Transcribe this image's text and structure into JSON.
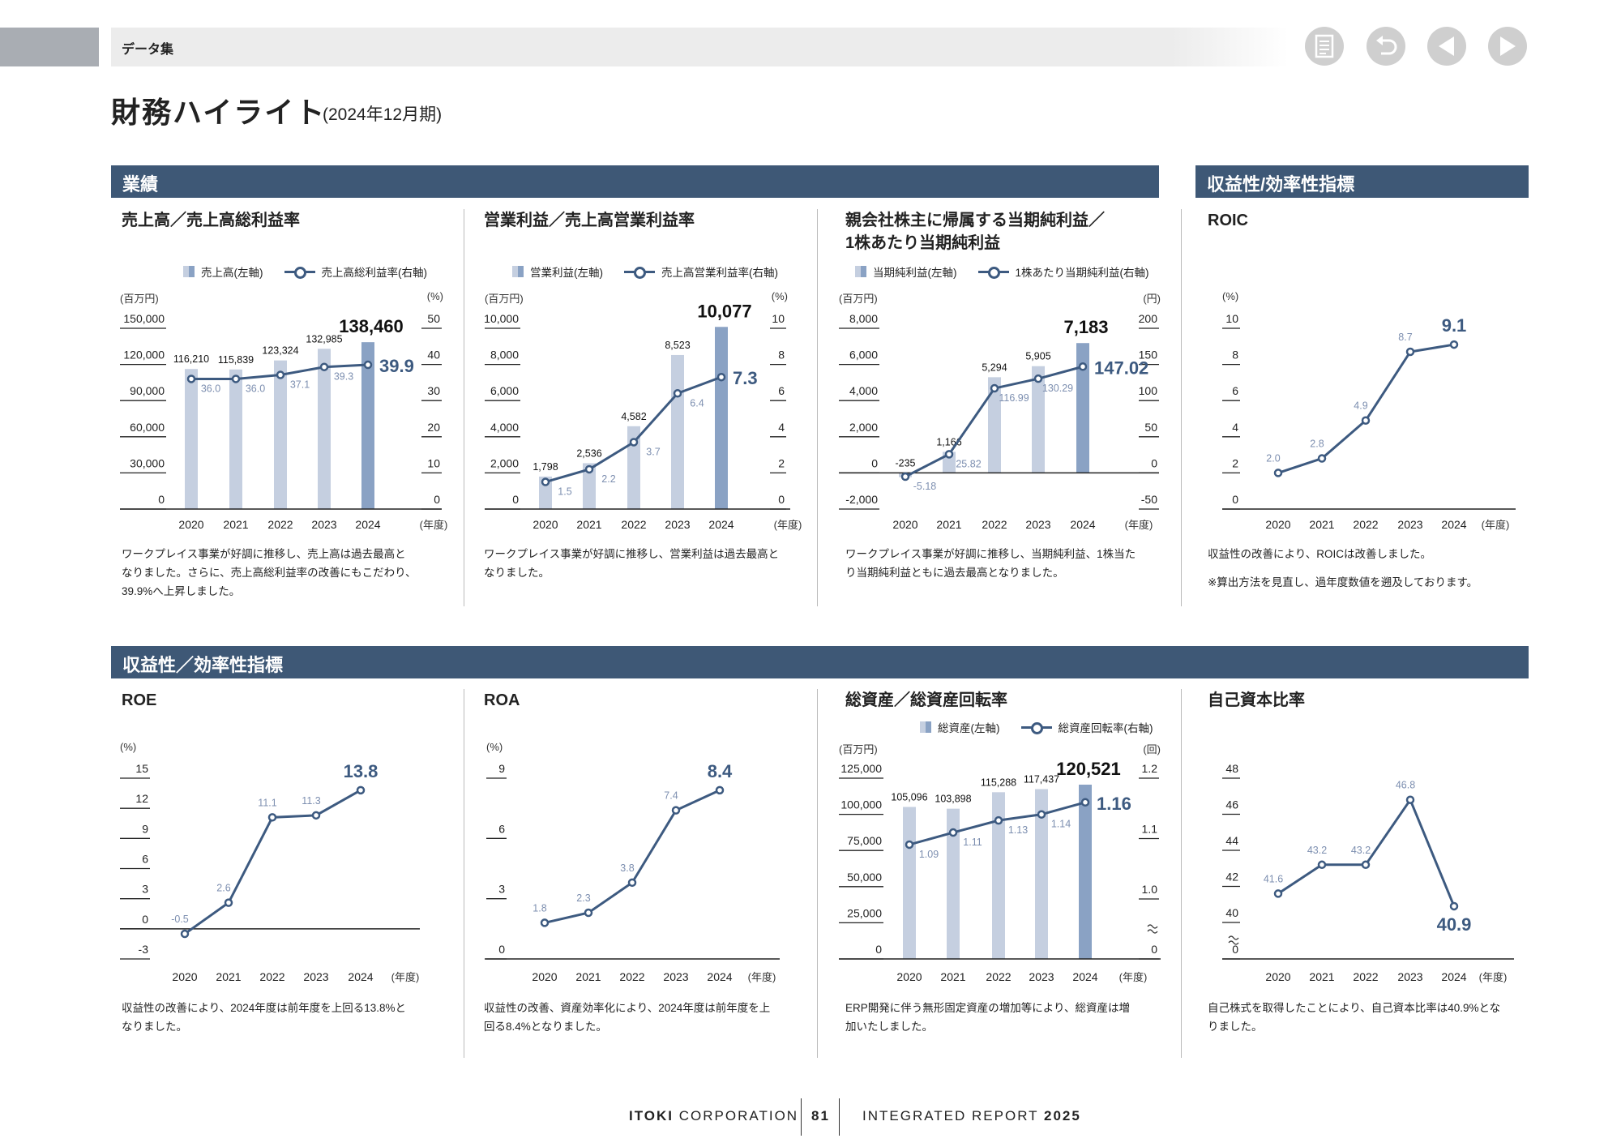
{
  "header": {
    "section": "データ集",
    "nav": [
      "document-icon",
      "undo-icon",
      "prev-page-icon",
      "next-page-icon"
    ]
  },
  "title": {
    "main": "財務ハイライト",
    "period": "(2024年12月期)"
  },
  "sections": {
    "top_left": "業績",
    "top_right": "収益性/効率性指標",
    "bottom": "収益性／効率性指標"
  },
  "colors": {
    "section": "#3e5876",
    "bar": "#c5cfe0",
    "bar_latest": "#8aa2c4",
    "line": "#3d5a80",
    "label": "#7d8fb0"
  },
  "chart_data": [
    {
      "id": "c1",
      "type": "bar+line",
      "title": "売上高／売上高総利益率",
      "legend_bar": "売上高(左軸)",
      "legend_line": "売上高総利益率(右軸)",
      "unit_left": "(百万円)",
      "unit_right": "(%)",
      "x_unit": "(年度)",
      "categories": [
        "2020",
        "2021",
        "2022",
        "2023",
        "2024"
      ],
      "left_ticks": [
        "0",
        "30,000",
        "60,000",
        "90,000",
        "120,000",
        "150,000"
      ],
      "right_ticks": [
        "0",
        "10",
        "20",
        "30",
        "40",
        "50"
      ],
      "bars": [
        116210,
        115839,
        123324,
        132985,
        138460
      ],
      "line": [
        "36.0",
        "36.0",
        "37.1",
        "39.3",
        "39.9"
      ],
      "desc": [
        "ワークプレイス事業が好調に推移し、売上高は過去最高と",
        "なりました。さらに、売上高総利益率の改善にもこだわり、",
        "39.9%へ上昇しました。"
      ]
    },
    {
      "id": "c2",
      "type": "bar+line",
      "title": "営業利益／売上高営業利益率",
      "legend_bar": "営業利益(左軸)",
      "legend_line": "売上高営業利益率(右軸)",
      "unit_left": "(百万円)",
      "unit_right": "(%)",
      "x_unit": "(年度)",
      "categories": [
        "2020",
        "2021",
        "2022",
        "2023",
        "2024"
      ],
      "left_ticks": [
        "0",
        "2,000",
        "4,000",
        "6,000",
        "8,000",
        "10,000"
      ],
      "right_ticks": [
        "0",
        "2",
        "4",
        "6",
        "8",
        "10"
      ],
      "bars": [
        1798,
        2536,
        4582,
        8523,
        10077
      ],
      "line": [
        "1.5",
        "2.2",
        "3.7",
        "6.4",
        "7.3"
      ],
      "desc": [
        "ワークプレイス事業が好調に推移し、営業利益は過去最高と",
        "なりました。"
      ]
    },
    {
      "id": "c3",
      "type": "bar+line",
      "title": "親会社株主に帰属する当期純利益／",
      "title2": "1株あたり当期純利益",
      "legend_bar": "当期純利益(左軸)",
      "legend_line": "1株あたり当期純利益(右軸)",
      "unit_left": "(百万円)",
      "unit_right": "(円)",
      "x_unit": "(年度)",
      "categories": [
        "2020",
        "2021",
        "2022",
        "2023",
        "2024"
      ],
      "left_ticks": [
        "-2,000",
        "0",
        "2,000",
        "4,000",
        "6,000",
        "8,000"
      ],
      "right_ticks": [
        "-50",
        "0",
        "50",
        "100",
        "150",
        "200"
      ],
      "bars": [
        -235,
        1166,
        5294,
        5905,
        7183
      ],
      "line": [
        "-5.18",
        "25.82",
        "116.99",
        "130.29",
        "147.02"
      ],
      "desc": [
        "ワークプレイス事業が好調に推移し、当期純利益、1株当た",
        "り当期純利益ともに過去最高となりました。"
      ]
    },
    {
      "id": "c4",
      "type": "line",
      "title": "ROIC",
      "unit_left": "(%)",
      "x_unit": "(年度)",
      "categories": [
        "2020",
        "2021",
        "2022",
        "2023",
        "2024"
      ],
      "left_ticks": [
        "0",
        "2",
        "4",
        "6",
        "8",
        "10"
      ],
      "line": [
        "2.0",
        "2.8",
        "4.9",
        "8.7",
        "9.1"
      ],
      "desc": [
        "収益性の改善により、ROICは改善しました。",
        "※算出方法を見直し、過年度数値を遡及しております。"
      ]
    },
    {
      "id": "c5",
      "type": "line",
      "title": "ROE",
      "unit_left": "(%)",
      "x_unit": "(年度)",
      "categories": [
        "2020",
        "2021",
        "2022",
        "2023",
        "2024"
      ],
      "left_ticks": [
        "-3",
        "0",
        "3",
        "6",
        "9",
        "12",
        "15"
      ],
      "line": [
        "-0.5",
        "2.6",
        "11.1",
        "11.3",
        "13.8"
      ],
      "desc": [
        "収益性の改善により、2024年度は前年度を上回る13.8%と",
        "なりました。"
      ]
    },
    {
      "id": "c6",
      "type": "line",
      "title": "ROA",
      "unit_left": "(%)",
      "x_unit": "(年度)",
      "categories": [
        "2020",
        "2021",
        "2022",
        "2023",
        "2024"
      ],
      "left_ticks": [
        "0",
        "3",
        "6",
        "9"
      ],
      "line": [
        "1.8",
        "2.3",
        "3.8",
        "7.4",
        "8.4"
      ],
      "desc": [
        "収益性の改善、資産効率化により、2024年度は前年度を上",
        "回る8.4%となりました。"
      ]
    },
    {
      "id": "c7",
      "type": "bar+line",
      "title": "総資産／総資産回転率",
      "legend_bar": "総資産(左軸)",
      "legend_line": "総資産回転率(右軸)",
      "unit_left": "(百万円)",
      "unit_right": "(回)",
      "x_unit": "(年度)",
      "categories": [
        "2020",
        "2021",
        "2022",
        "2023",
        "2024"
      ],
      "left_ticks": [
        "0",
        "25,000",
        "50,000",
        "75,000",
        "100,000",
        "125,000"
      ],
      "right_ticks": [
        "0",
        "1.0",
        "1.1",
        "1.2"
      ],
      "bars": [
        105096,
        103898,
        115288,
        117437,
        120521
      ],
      "line": [
        "1.09",
        "1.11",
        "1.13",
        "1.14",
        "1.16"
      ],
      "desc": [
        "ERP開発に伴う無形固定資産の増加等により、総資産は増",
        "加いたしました。"
      ]
    },
    {
      "id": "c8",
      "type": "line",
      "title": "自己資本比率",
      "x_unit": "(年度)",
      "categories": [
        "2020",
        "2021",
        "2022",
        "2023",
        "2024"
      ],
      "left_ticks": [
        "0",
        "40",
        "42",
        "44",
        "46",
        "48"
      ],
      "line": [
        "41.6",
        "43.2",
        "43.2",
        "46.8",
        "40.9"
      ],
      "desc": [
        "自己株式を取得したことにより、自己資本比率は40.9%とな",
        "りました。"
      ]
    }
  ],
  "footer": {
    "company_bold": "ITOKI",
    "company": "CORPORATION",
    "page": "81",
    "report": "INTEGRATED REPORT",
    "year": "2025"
  }
}
